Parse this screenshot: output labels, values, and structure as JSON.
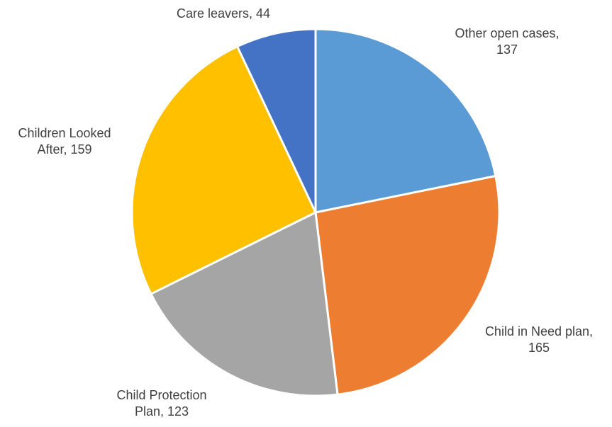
{
  "chart_data": {
    "type": "pie",
    "title": "",
    "start_angle_deg": 0,
    "direction": "clockwise",
    "slices": [
      {
        "name": "Other open cases",
        "value": 137,
        "color": "#5b9bd5",
        "label_lines": [
          "Other open cases,",
          "137"
        ]
      },
      {
        "name": "Child in Need plan",
        "value": 165,
        "color": "#ed7d31",
        "label_lines": [
          "Child in Need plan,",
          "165"
        ]
      },
      {
        "name": "Child Protection Plan",
        "value": 123,
        "color": "#a5a5a5",
        "label_lines": [
          "Child Protection",
          "Plan, 123"
        ]
      },
      {
        "name": "Children Looked After",
        "value": 159,
        "color": "#ffc000",
        "label_lines": [
          "Children Looked",
          "After, 159"
        ]
      },
      {
        "name": "Care leavers",
        "value": 44,
        "color": "#4472c4",
        "label_lines": [
          "Care leavers, 44"
        ]
      }
    ]
  }
}
